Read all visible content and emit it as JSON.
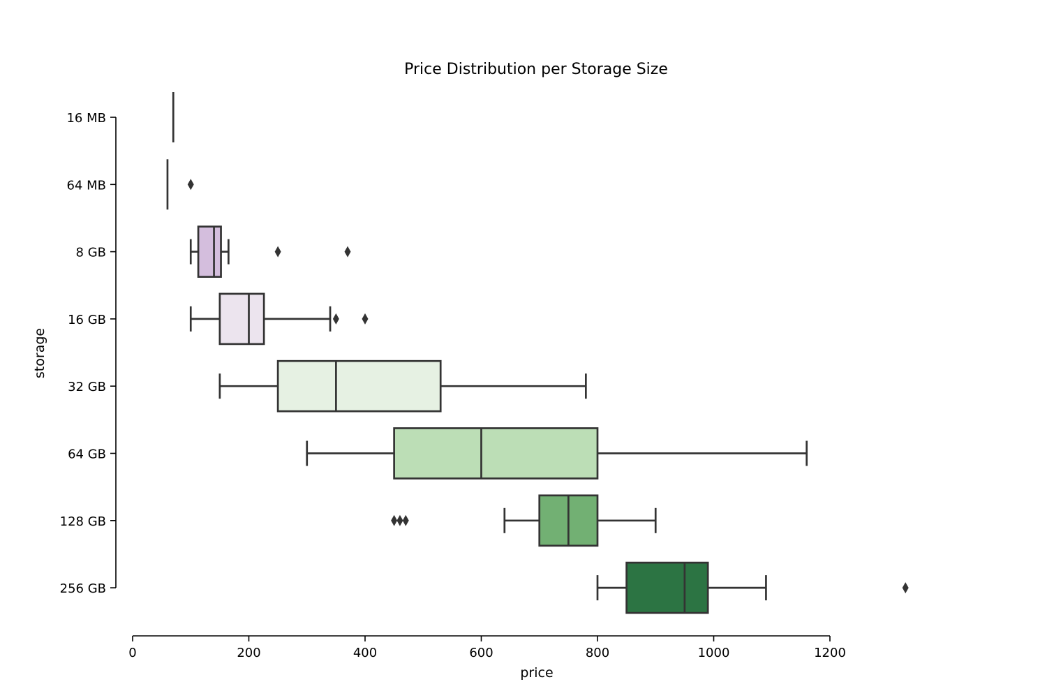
{
  "chart_data": {
    "type": "box",
    "title": "Price Distribution per Storage Size",
    "xlabel": "price",
    "ylabel": "storage",
    "xlim": [
      0,
      1200
    ],
    "x_ticks": [
      0,
      200,
      400,
      600,
      800,
      1000,
      1200
    ],
    "grid": false,
    "legend": "none",
    "categories": [
      "16 MB",
      "64 MB",
      "8 GB",
      "16 GB",
      "32 GB",
      "64 GB",
      "128 GB",
      "256 GB"
    ],
    "boxes": [
      {
        "category": "16 MB",
        "min": 70,
        "q1": 70,
        "median": 70,
        "q3": 70,
        "max": 70,
        "fliers": [],
        "color": "#6f4b8f"
      },
      {
        "category": "64 MB",
        "min": 60,
        "q1": 60,
        "median": 60,
        "q3": 60,
        "max": 60,
        "fliers": [
          100
        ],
        "color": "#9b7bb5"
      },
      {
        "category": "8 GB",
        "min": 100,
        "q1": 113,
        "median": 140,
        "q3": 152,
        "max": 165,
        "fliers": [
          250,
          370
        ],
        "color": "#d4bedd"
      },
      {
        "category": "16 GB",
        "min": 100,
        "q1": 150,
        "median": 200,
        "q3": 226,
        "max": 340,
        "fliers": [
          350,
          400
        ],
        "color": "#ece4ee"
      },
      {
        "category": "32 GB",
        "min": 150,
        "q1": 250,
        "median": 350,
        "q3": 530,
        "max": 780,
        "fliers": [],
        "color": "#e6f1e3"
      },
      {
        "category": "64 GB",
        "min": 300,
        "q1": 450,
        "median": 600,
        "q3": 800,
        "max": 1160,
        "fliers": [],
        "color": "#bcdeb6"
      },
      {
        "category": "128 GB",
        "min": 640,
        "q1": 700,
        "median": 750,
        "q3": 800,
        "max": 900,
        "fliers": [
          450,
          460,
          470
        ],
        "color": "#72b073"
      },
      {
        "category": "256 GB",
        "min": 800,
        "q1": 850,
        "median": 950,
        "q3": 990,
        "max": 1090,
        "fliers": [
          1330
        ],
        "color": "#2c7443"
      }
    ]
  }
}
